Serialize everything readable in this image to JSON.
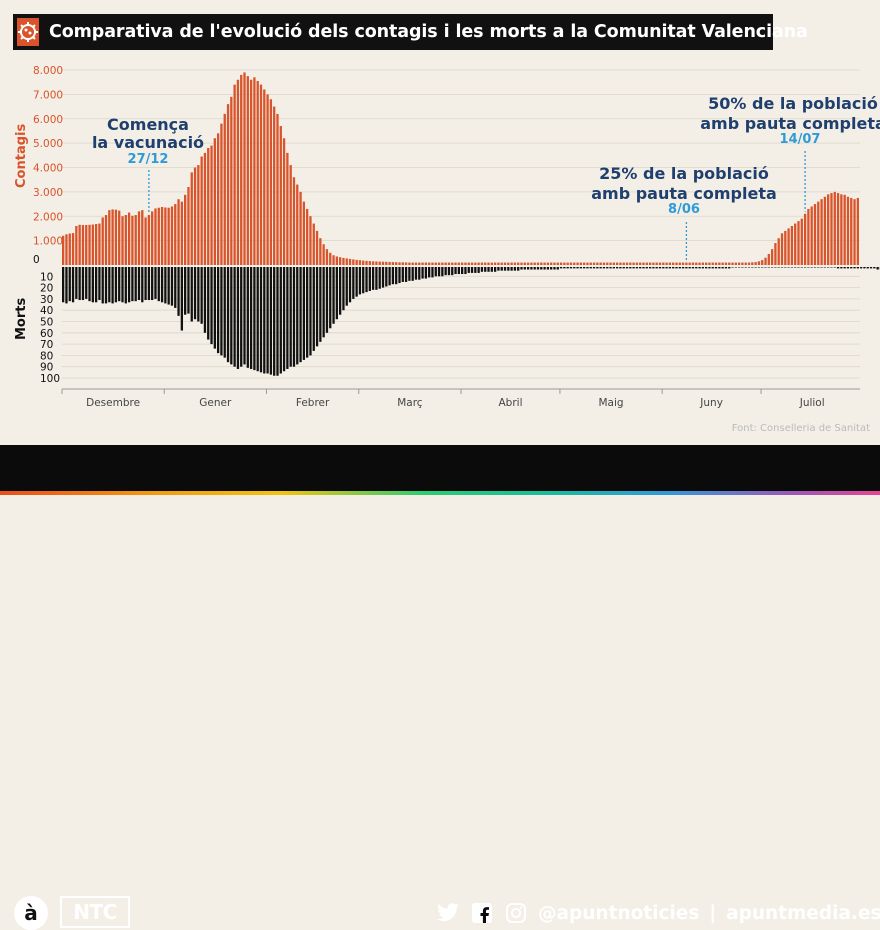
{
  "title": "Comparativa de l'evolució dels contagis i les morts a la Comunitat Valenciana",
  "source": "Font: Conselleria de Sanitat",
  "footer": {
    "logo_a": "à",
    "logo_ntc": "NTC",
    "handle": "@apuntnoticies",
    "separator": "|",
    "site": "apuntmedia.es"
  },
  "icons": [
    "brand-icon",
    "twitter-icon",
    "facebook-icon",
    "instagram-icon"
  ],
  "colors": {
    "cases": "#d9532b",
    "deaths": "#111111",
    "annotation_dark": "#1f3f6e",
    "annotation_light": "#2e9bd6",
    "title_bg": "#111111"
  },
  "chart_data": {
    "type": "bar",
    "ylabel_top": "Contagis",
    "ylabel_bottom": "Morts",
    "ylim_cases": [
      0,
      8000
    ],
    "yticks_cases": [
      "0",
      "1.000",
      "2.000",
      "3.000",
      "4.000",
      "5.000",
      "6.000",
      "7.000",
      "8.000"
    ],
    "ylim_deaths": [
      0,
      100
    ],
    "yticks_deaths": [
      "10",
      "20",
      "30",
      "40",
      "50",
      "60",
      "70",
      "80",
      "90",
      "100"
    ],
    "months": [
      "Desembre",
      "Gener",
      "Febrer",
      "Març",
      "Abril",
      "Maig",
      "Juny",
      "Juliol"
    ],
    "grid": true,
    "annotations": [
      {
        "line1": "Comença",
        "line2": "la vacunació",
        "date": "27/12",
        "day_index": 26
      },
      {
        "line1": "25% de la població",
        "line2": "amb pauta completa",
        "date": "8/06",
        "day_index": 189
      },
      {
        "line1": "50% de la població",
        "line2": "amb pauta completa",
        "date": "14/07",
        "day_index": 225
      }
    ],
    "series": [
      {
        "name": "Contagis",
        "values": [
          1200,
          1260,
          1290,
          1310,
          1600,
          1650,
          1640,
          1640,
          1650,
          1660,
          1680,
          1700,
          1950,
          2050,
          2250,
          2280,
          2270,
          2230,
          2000,
          2050,
          2150,
          2020,
          2050,
          2200,
          2250,
          1950,
          2050,
          2200,
          2320,
          2350,
          2380,
          2360,
          2350,
          2400,
          2500,
          2700,
          2600,
          2880,
          3200,
          3800,
          4000,
          4100,
          4450,
          4600,
          4800,
          4900,
          5200,
          5400,
          5800,
          6200,
          6600,
          6900,
          7400,
          7600,
          7800,
          7900,
          7750,
          7600,
          7700,
          7550,
          7400,
          7200,
          7000,
          6800,
          6500,
          6200,
          5700,
          5200,
          4600,
          4100,
          3600,
          3300,
          3000,
          2600,
          2300,
          2000,
          1700,
          1400,
          1100,
          850,
          650,
          500,
          400,
          350,
          320,
          290,
          270,
          250,
          230,
          210,
          200,
          180,
          170,
          160,
          150,
          145,
          140,
          135,
          130,
          125,
          120,
          115,
          110,
          110,
          105,
          100,
          100,
          100,
          100,
          100,
          100,
          100,
          100,
          100,
          100,
          100,
          100,
          100,
          100,
          100,
          100,
          100,
          100,
          100,
          100,
          100,
          100,
          100,
          100,
          100,
          100,
          100,
          100,
          100,
          100,
          100,
          100,
          100,
          100,
          100,
          100,
          100,
          100,
          100,
          100,
          100,
          100,
          100,
          100,
          100,
          100,
          100,
          100,
          100,
          100,
          100,
          100,
          100,
          100,
          100,
          100,
          100,
          100,
          100,
          100,
          100,
          100,
          100,
          100,
          100,
          100,
          100,
          100,
          100,
          100,
          100,
          100,
          100,
          100,
          100,
          100,
          100,
          100,
          100,
          100,
          100,
          100,
          100,
          100,
          100,
          100,
          100,
          100,
          100,
          100,
          100,
          100,
          100,
          100,
          100,
          100,
          100,
          100,
          100,
          100,
          100,
          100,
          100,
          100,
          110,
          120,
          150,
          200,
          300,
          450,
          650,
          900,
          1100,
          1300,
          1400,
          1500,
          1600,
          1700,
          1800,
          1900,
          2100,
          2300,
          2400,
          2500,
          2600,
          2700,
          2800,
          2900,
          2950,
          3000,
          2950,
          2900,
          2880,
          2800,
          2750,
          2700,
          2750
        ]
      },
      {
        "name": "Morts",
        "values": [
          33,
          34,
          32,
          33,
          30,
          31,
          31,
          30,
          32,
          33,
          33,
          31,
          34,
          34,
          33,
          34,
          33,
          32,
          33,
          34,
          33,
          32,
          32,
          31,
          33,
          31,
          31,
          31,
          30,
          32,
          33,
          34,
          35,
          36,
          38,
          45,
          58,
          44,
          43,
          50,
          48,
          50,
          52,
          60,
          66,
          70,
          74,
          78,
          80,
          82,
          86,
          88,
          90,
          92,
          90,
          88,
          91,
          92,
          93,
          94,
          95,
          96,
          96,
          97,
          98,
          98,
          96,
          94,
          92,
          90,
          90,
          88,
          86,
          84,
          82,
          80,
          76,
          72,
          68,
          64,
          60,
          56,
          52,
          48,
          44,
          40,
          36,
          33,
          30,
          28,
          26,
          25,
          24,
          23,
          22,
          22,
          21,
          20,
          19,
          18,
          17,
          17,
          16,
          15,
          15,
          14,
          14,
          13,
          13,
          12,
          12,
          11,
          11,
          10,
          10,
          10,
          9,
          9,
          9,
          8,
          8,
          8,
          8,
          7,
          7,
          7,
          7,
          6,
          6,
          6,
          6,
          6,
          5,
          5,
          5,
          5,
          5,
          5,
          5,
          4,
          4,
          4,
          4,
          4,
          4,
          4,
          4,
          4,
          4,
          4,
          4,
          3,
          3,
          3,
          3,
          3,
          3,
          3,
          3,
          3,
          3,
          3,
          3,
          3,
          3,
          3,
          3,
          3,
          3,
          3,
          3,
          3,
          3,
          3,
          3,
          3,
          3,
          3,
          3,
          3,
          3,
          3,
          3,
          3,
          3,
          3,
          3,
          3,
          3,
          3,
          3,
          3,
          3,
          3,
          3,
          3,
          3,
          3,
          3,
          3,
          3,
          3,
          3,
          2,
          2,
          2,
          2,
          2,
          2,
          2,
          2,
          2,
          2,
          2,
          2,
          2,
          2,
          2,
          2,
          2,
          2,
          2,
          2,
          2,
          2,
          2,
          2,
          2,
          2,
          2,
          2,
          2,
          2,
          2,
          2,
          3,
          3,
          3,
          3,
          3,
          3,
          3,
          3,
          3,
          3,
          3,
          3,
          4,
          4,
          4
        ]
      }
    ]
  }
}
